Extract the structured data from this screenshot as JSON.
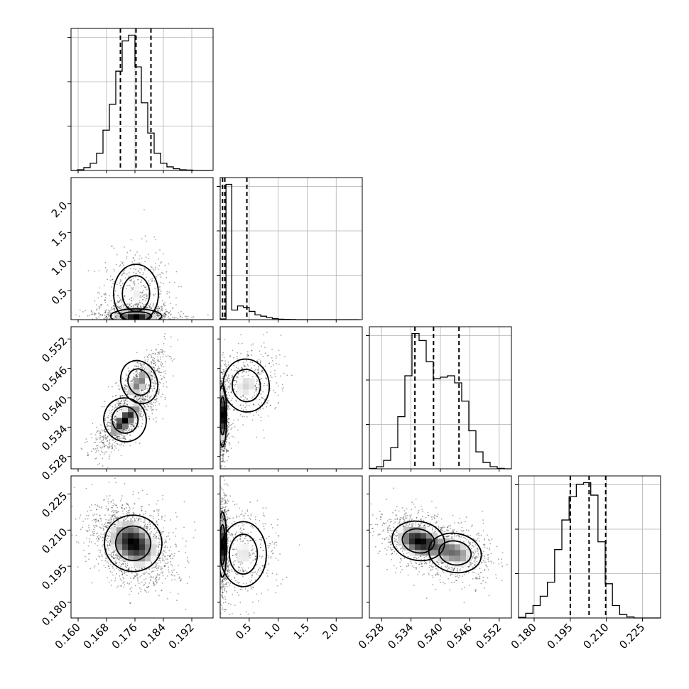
{
  "chart_data": {
    "type": "corner",
    "params": [
      {
        "id": "p0",
        "range": [
          0.158,
          0.198
        ],
        "ticks": [
          "0.160",
          "0.168",
          "0.176",
          "0.184",
          "0.192"
        ],
        "tick_values": [
          0.16,
          0.168,
          0.176,
          0.184,
          0.192
        ],
        "quantiles": [
          0.1719,
          0.1763,
          0.1805
        ]
      },
      {
        "id": "p1",
        "range": [
          0.0,
          2.45
        ],
        "ticks": [
          "0.5",
          "1.0",
          "1.5",
          "2.0"
        ],
        "tick_values": [
          0.5,
          1.0,
          1.5,
          2.0
        ],
        "quantiles": [
          0.04,
          0.08,
          0.46
        ]
      },
      {
        "id": "p2",
        "range": [
          0.5255,
          0.5545
        ],
        "ticks": [
          "0.528",
          "0.534",
          "0.540",
          "0.546",
          "0.552"
        ],
        "tick_values": [
          0.528,
          0.534,
          0.54,
          0.546,
          0.552
        ],
        "quantiles": [
          0.5348,
          0.5386,
          0.5438
        ]
      },
      {
        "id": "p3",
        "range": [
          0.1735,
          0.2325
        ],
        "ticks": [
          "0.180",
          "0.195",
          "0.210",
          "0.225"
        ],
        "tick_values": [
          0.18,
          0.195,
          0.21,
          0.225
        ],
        "quantiles": [
          0.195,
          0.2028,
          0.2097
        ]
      }
    ],
    "histograms": [
      {
        "param": "p0",
        "edges_start": 0.158,
        "bin_width": 0.0018,
        "counts": [
          0,
          0.5,
          2,
          5,
          12,
          28,
          46,
          69,
          90,
          94,
          72,
          47,
          26,
          12,
          5,
          2.5,
          1.2,
          0.5,
          0.3,
          0,
          0,
          0
        ]
      },
      {
        "param": "p1",
        "edges_start": 0.0,
        "bin_width": 0.1,
        "counts": [
          0.5,
          99,
          7,
          10,
          9,
          6,
          3.5,
          2.5,
          1.5,
          0.7,
          0.3,
          0.2,
          0.1,
          0,
          0,
          0,
          0,
          0,
          0,
          0,
          0,
          0,
          0,
          0
        ]
      },
      {
        "param": "p2",
        "edges_start": 0.5255,
        "bin_width": 0.00145,
        "counts": [
          0.3,
          1.5,
          6,
          15,
          37,
          66,
          96,
          91,
          76,
          64,
          65,
          66,
          61,
          48,
          27,
          12,
          4.5,
          1.5,
          0.3,
          0,
          0
        ]
      },
      {
        "param": "p3",
        "edges_start": 0.1735,
        "bin_width": 0.003,
        "counts": [
          0.4,
          3,
          8,
          14,
          23,
          44,
          63,
          78,
          86,
          87,
          79,
          49,
          22,
          8,
          2.2,
          0.7,
          0,
          0,
          0,
          0
        ]
      }
    ],
    "pairs": [
      {
        "x": "p0",
        "y": "p1",
        "blobs": [
          {
            "cx": 0.1763,
            "cy": 0.06,
            "sx": 0.004,
            "sy": 0.07,
            "rho": 0,
            "w": 1.0
          },
          {
            "cx": 0.1763,
            "cy": 0.45,
            "sx": 0.0035,
            "sy": 0.28,
            "rho": 0,
            "w": 0.45
          }
        ]
      },
      {
        "x": "p0",
        "y": "p2",
        "blobs": [
          {
            "cx": 0.1732,
            "cy": 0.5355,
            "sx": 0.0033,
            "sy": 0.0025,
            "rho": 0.8,
            "w": 1.0
          },
          {
            "cx": 0.1772,
            "cy": 0.5432,
            "sx": 0.0028,
            "sy": 0.0025,
            "rho": 0.75,
            "w": 0.7
          }
        ]
      },
      {
        "x": "p1",
        "y": "p2",
        "blobs": [
          {
            "cx": 0.04,
            "cy": 0.5363,
            "sx": 0.04,
            "sy": 0.0035,
            "rho": 0,
            "w": 1.0
          },
          {
            "cx": 0.45,
            "cy": 0.5425,
            "sx": 0.22,
            "sy": 0.003,
            "rho": 0.2,
            "w": 0.45
          }
        ]
      },
      {
        "x": "p0",
        "y": "p3",
        "blobs": [
          {
            "cx": 0.1755,
            "cy": 0.2045,
            "sx": 0.0045,
            "sy": 0.0065,
            "rho": -0.3,
            "w": 1.0
          }
        ]
      },
      {
        "x": "p1",
        "y": "p3",
        "blobs": [
          {
            "cx": 0.04,
            "cy": 0.204,
            "sx": 0.04,
            "sy": 0.0075,
            "rho": 0,
            "w": 1.0
          },
          {
            "cx": 0.4,
            "cy": 0.2,
            "sx": 0.22,
            "sy": 0.0075,
            "rho": 0,
            "w": 0.45
          }
        ]
      },
      {
        "x": "p2",
        "y": "p3",
        "blobs": [
          {
            "cx": 0.5355,
            "cy": 0.2055,
            "sx": 0.003,
            "sy": 0.0045,
            "rho": -0.3,
            "w": 1.0
          },
          {
            "cx": 0.543,
            "cy": 0.2005,
            "sx": 0.003,
            "sy": 0.0045,
            "rho": -0.3,
            "w": 0.7
          }
        ]
      }
    ],
    "grid": true,
    "legend": "none"
  }
}
